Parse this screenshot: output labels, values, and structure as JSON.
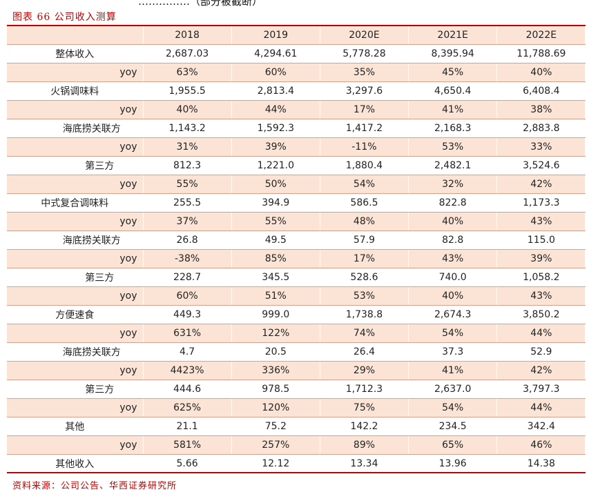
{
  "header_fragment": "……………（部分被截断）",
  "caption": "图表 66  公司收入测算",
  "source": "资料来源：公司公告、华西证券研究所",
  "columns": [
    "2018",
    "2019",
    "2020E",
    "2021E",
    "2022E"
  ],
  "rows": [
    {
      "label": "整体收入",
      "level": 0,
      "values": [
        "2,687.03",
        "4,294.61",
        "5,778.28",
        "8,395.94",
        "11,788.69"
      ]
    },
    {
      "label": "yoy",
      "level": "yoy",
      "values": [
        "63%",
        "60%",
        "35%",
        "45%",
        "40%"
      ]
    },
    {
      "label": "火锅调味料",
      "level": 0,
      "values": [
        "1,955.5",
        "2,813.4",
        "3,297.6",
        "4,650.4",
        "6,408.4"
      ]
    },
    {
      "label": "yoy",
      "level": "yoy",
      "values": [
        "40%",
        "44%",
        "17%",
        "41%",
        "38%"
      ]
    },
    {
      "label": "海底捞关联方",
      "level": 1,
      "values": [
        "1,143.2",
        "1,592.3",
        "1,417.2",
        "2,168.3",
        "2,883.8"
      ]
    },
    {
      "label": "yoy",
      "level": "yoy",
      "values": [
        "31%",
        "39%",
        "-11%",
        "53%",
        "33%"
      ]
    },
    {
      "label": "第三方",
      "level": 2,
      "values": [
        "812.3",
        "1,221.0",
        "1,880.4",
        "2,482.1",
        "3,524.6"
      ]
    },
    {
      "label": "yoy",
      "level": "yoy",
      "values": [
        "55%",
        "50%",
        "54%",
        "32%",
        "42%"
      ]
    },
    {
      "label": "中式复合调味料",
      "level": 0,
      "values": [
        "255.5",
        "394.9",
        "586.5",
        "822.8",
        "1,173.3"
      ]
    },
    {
      "label": "yoy",
      "level": "yoy",
      "values": [
        "37%",
        "55%",
        "48%",
        "40%",
        "43%"
      ]
    },
    {
      "label": "海底捞关联方",
      "level": 1,
      "values": [
        "26.8",
        "49.5",
        "57.9",
        "82.8",
        "115.0"
      ]
    },
    {
      "label": "yoy",
      "level": "yoy",
      "values": [
        "-38%",
        "85%",
        "17%",
        "43%",
        "39%"
      ]
    },
    {
      "label": "第三方",
      "level": 2,
      "values": [
        "228.7",
        "345.5",
        "528.6",
        "740.0",
        "1,058.2"
      ]
    },
    {
      "label": "yoy",
      "level": "yoy",
      "values": [
        "60%",
        "51%",
        "53%",
        "40%",
        "43%"
      ]
    },
    {
      "label": "方便速食",
      "level": 0,
      "values": [
        "449.3",
        "999.0",
        "1,738.8",
        "2,674.3",
        "3,850.2"
      ]
    },
    {
      "label": "yoy",
      "level": "yoy",
      "values": [
        "631%",
        "122%",
        "74%",
        "54%",
        "44%"
      ]
    },
    {
      "label": "海底捞关联方",
      "level": 1,
      "values": [
        "4.7",
        "20.5",
        "26.4",
        "37.3",
        "52.9"
      ]
    },
    {
      "label": "yoy",
      "level": "yoy",
      "values": [
        "4423%",
        "336%",
        "29%",
        "41%",
        "42%"
      ]
    },
    {
      "label": "第三方",
      "level": 2,
      "values": [
        "444.6",
        "978.5",
        "1,712.3",
        "2,637.0",
        "3,797.3"
      ]
    },
    {
      "label": "yoy",
      "level": "yoy",
      "values": [
        "625%",
        "120%",
        "75%",
        "54%",
        "44%"
      ]
    },
    {
      "label": "其他",
      "level": 0,
      "values": [
        "21.1",
        "75.2",
        "142.2",
        "234.5",
        "342.4"
      ]
    },
    {
      "label": "yoy",
      "level": "yoy",
      "values": [
        "581%",
        "257%",
        "89%",
        "65%",
        "46%"
      ]
    },
    {
      "label": "其他收入",
      "level": 0,
      "values": [
        "5.66",
        "12.12",
        "13.34",
        "13.96",
        "14.38"
      ]
    }
  ],
  "colors": {
    "accent": "#c00000",
    "band": "#fbe4d5",
    "grid": "#d9a089"
  }
}
